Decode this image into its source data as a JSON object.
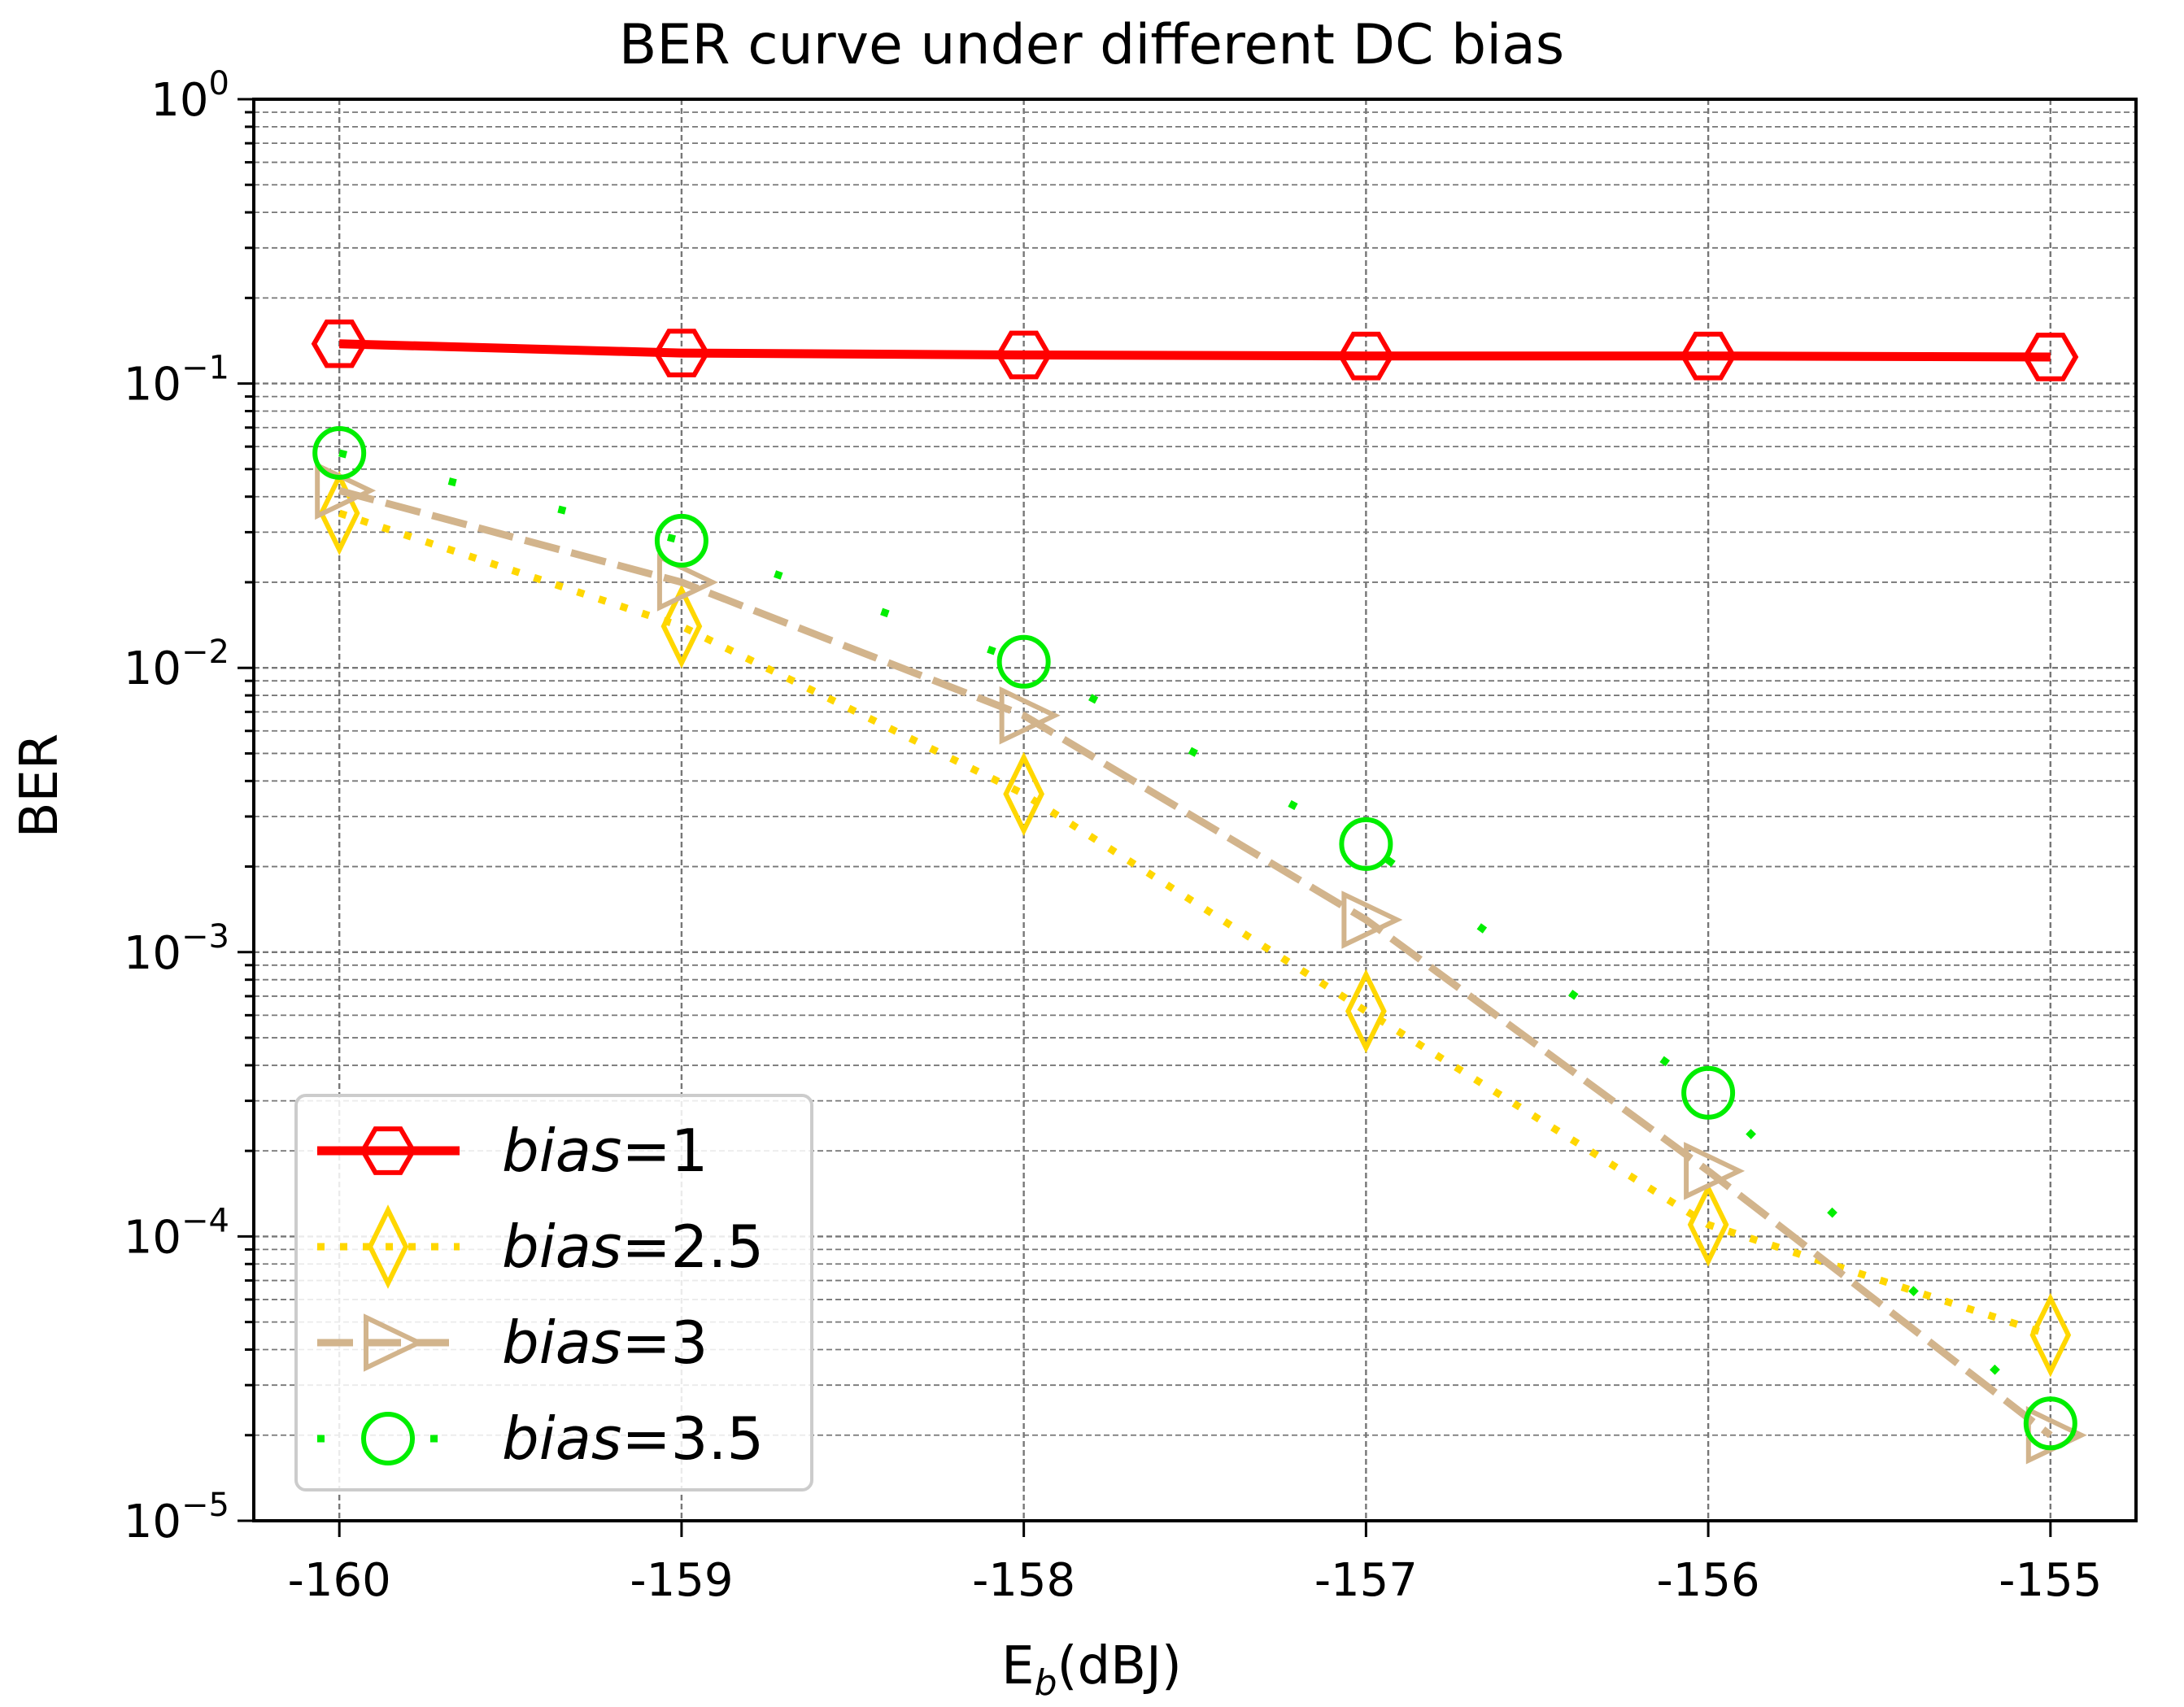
{
  "chart_data": {
    "type": "line",
    "title": "BER curve under different DC bias",
    "xlabel": {
      "base": "E",
      "sub": "b",
      "rest": "(dBJ)"
    },
    "ylabel": "BER",
    "yscale": "log",
    "xlim": [
      -160.25,
      -154.75
    ],
    "ylim": [
      1e-05,
      1
    ],
    "grid": true,
    "x": [
      -160,
      -159,
      -158,
      -157,
      -156,
      -155
    ],
    "x_tick_labels": [
      "-160",
      "-159",
      "-158",
      "-157",
      "-156",
      "-155"
    ],
    "y_ticks": [
      {
        "value": 1,
        "base": "10",
        "exp": "0"
      },
      {
        "value": 0.1,
        "base": "10",
        "exp": "−1"
      },
      {
        "value": 0.01,
        "base": "10",
        "exp": "−2"
      },
      {
        "value": 0.001,
        "base": "10",
        "exp": "−3"
      },
      {
        "value": 0.0001,
        "base": "10",
        "exp": "−4"
      },
      {
        "value": 1e-05,
        "base": "10",
        "exp": "−5"
      }
    ],
    "legend_position": "lower-left",
    "series": [
      {
        "name": "bias=1",
        "prefix": "bias",
        "suffix": "=1",
        "color": "#ff0000",
        "marker": "hexagon",
        "linestyle": "solid",
        "values": [
          0.138,
          0.128,
          0.126,
          0.125,
          0.125,
          0.124
        ]
      },
      {
        "name": "bias=2.5",
        "prefix": "bias",
        "suffix": "=2.5",
        "color": "#ffd700",
        "marker": "thin_diamond",
        "linestyle": "dotted",
        "values": [
          0.035,
          0.014,
          0.0036,
          0.00062,
          0.00011,
          4.5e-05
        ]
      },
      {
        "name": "bias=3",
        "prefix": "bias",
        "suffix": "=3",
        "color": "#d2b48c",
        "marker": "triangle_right",
        "linestyle": "dashed",
        "values": [
          0.042,
          0.02,
          0.0068,
          0.0013,
          0.00017,
          2e-05
        ]
      },
      {
        "name": "bias=3.5",
        "prefix": "bias",
        "suffix": "=3.5",
        "color": "#00ee00",
        "marker": "circle",
        "linestyle": "sparse-dotted",
        "values": [
          0.057,
          0.028,
          0.0105,
          0.0024,
          0.00032,
          2.2e-05
        ]
      }
    ]
  }
}
